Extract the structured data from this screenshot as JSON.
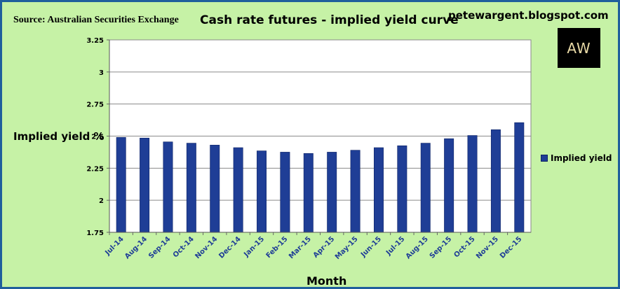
{
  "header": {
    "source": "Source: Australian Securities Exchange",
    "title": "Cash rate futures - implied yield curve",
    "blog": "petewargent.blogspot.com",
    "logo_text": "AW"
  },
  "colors": {
    "background": "#c6f2a6",
    "plot_area": "#ffffff",
    "bar": "#1f3e96",
    "frame": "#1f5f9c"
  },
  "chart_data": {
    "type": "bar",
    "categories": [
      "Jul-14",
      "Aug-14",
      "Sep-14",
      "Oct-14",
      "Nov-14",
      "Dec-14",
      "Jan-15",
      "Feb-15",
      "Mar-15",
      "Apr-15",
      "May-15",
      "Jun-15",
      "Jul-15",
      "Aug-15",
      "Sep-15",
      "Oct-15",
      "Nov-15",
      "Dec-15"
    ],
    "series": [
      {
        "name": "Implied yield",
        "values": [
          2.49,
          2.485,
          2.455,
          2.445,
          2.43,
          2.41,
          2.385,
          2.375,
          2.365,
          2.375,
          2.39,
          2.41,
          2.425,
          2.445,
          2.48,
          2.505,
          2.55,
          2.605
        ]
      }
    ],
    "xlabel": "Month",
    "ylabel": "Implied yield %",
    "ylim": [
      1.75,
      3.25
    ],
    "yticks": [
      "1.75",
      "2",
      "2.25",
      "2.5",
      "2.75",
      "3",
      "3.25"
    ],
    "grid": true,
    "legend": "right"
  }
}
